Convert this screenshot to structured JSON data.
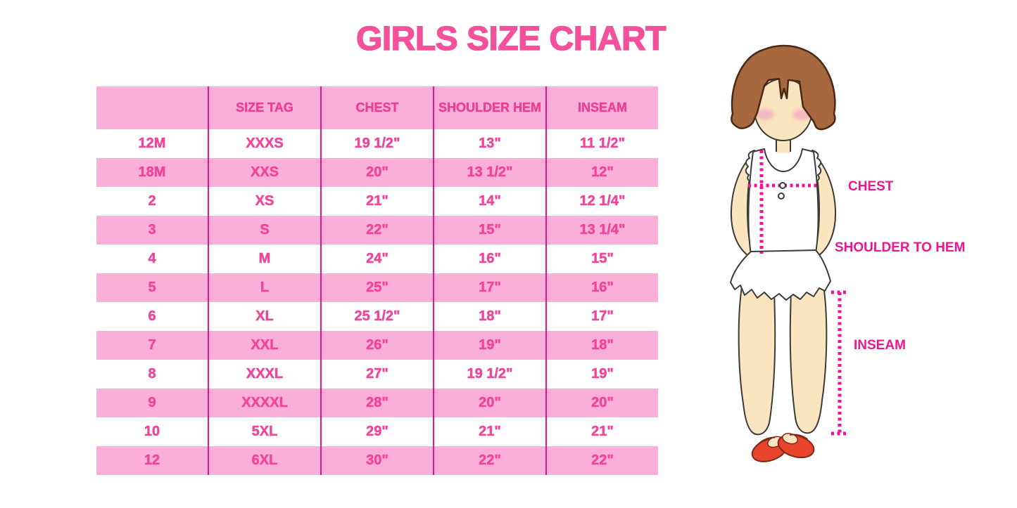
{
  "title": "GIRLS SIZE CHART",
  "chart_data": {
    "type": "table",
    "title": "GIRLS SIZE CHART",
    "columns": [
      "",
      "SIZE TAG",
      "CHEST",
      "SHOULDER HEM",
      "INSEAM"
    ],
    "rows": [
      [
        "12M",
        "XXXS",
        "19 1/2\"",
        "13\"",
        "11 1/2\""
      ],
      [
        "18M",
        "XXS",
        "20\"",
        "13 1/2\"",
        "12\""
      ],
      [
        "2",
        "XS",
        "21\"",
        "14\"",
        "12 1/4\""
      ],
      [
        "3",
        "S",
        "22\"",
        "15\"",
        "13 1/4\""
      ],
      [
        "4",
        "M",
        "24\"",
        "16\"",
        "15\""
      ],
      [
        "5",
        "L",
        "25\"",
        "17\"",
        "16\""
      ],
      [
        "6",
        "XL",
        "25 1/2\"",
        "18\"",
        "17\""
      ],
      [
        "7",
        "XXL",
        "26\"",
        "19\"",
        "18\""
      ],
      [
        "8",
        "XXXL",
        "27\"",
        "19 1/2\"",
        "19\""
      ],
      [
        "9",
        "XXXXL",
        "28\"",
        "20\"",
        "20\""
      ],
      [
        "10",
        "5XL",
        "29\"",
        "21\"",
        "21\""
      ],
      [
        "12",
        "6XL",
        "30\"",
        "22\"",
        "22\""
      ]
    ]
  },
  "diagram": {
    "labels": {
      "chest": "CHEST",
      "shoulder_to_hem": "SHOULDER TO HEM",
      "inseam": "INSEAM"
    }
  },
  "colors": {
    "title_pink": "#F4509C",
    "row_stripe_pink": "#FAAFD8",
    "row_stripe_white": "#FFFFFF",
    "cell_text_pink": "#EF459A",
    "column_divider_magenta": "#E6128C",
    "measure_label_magenta": "#EE168F",
    "dotted_line_magenta": "#F5109B",
    "hair_brown": "#A5683F",
    "skin_tone": "#FBE5BE",
    "shoe_red": "#E8432C"
  }
}
